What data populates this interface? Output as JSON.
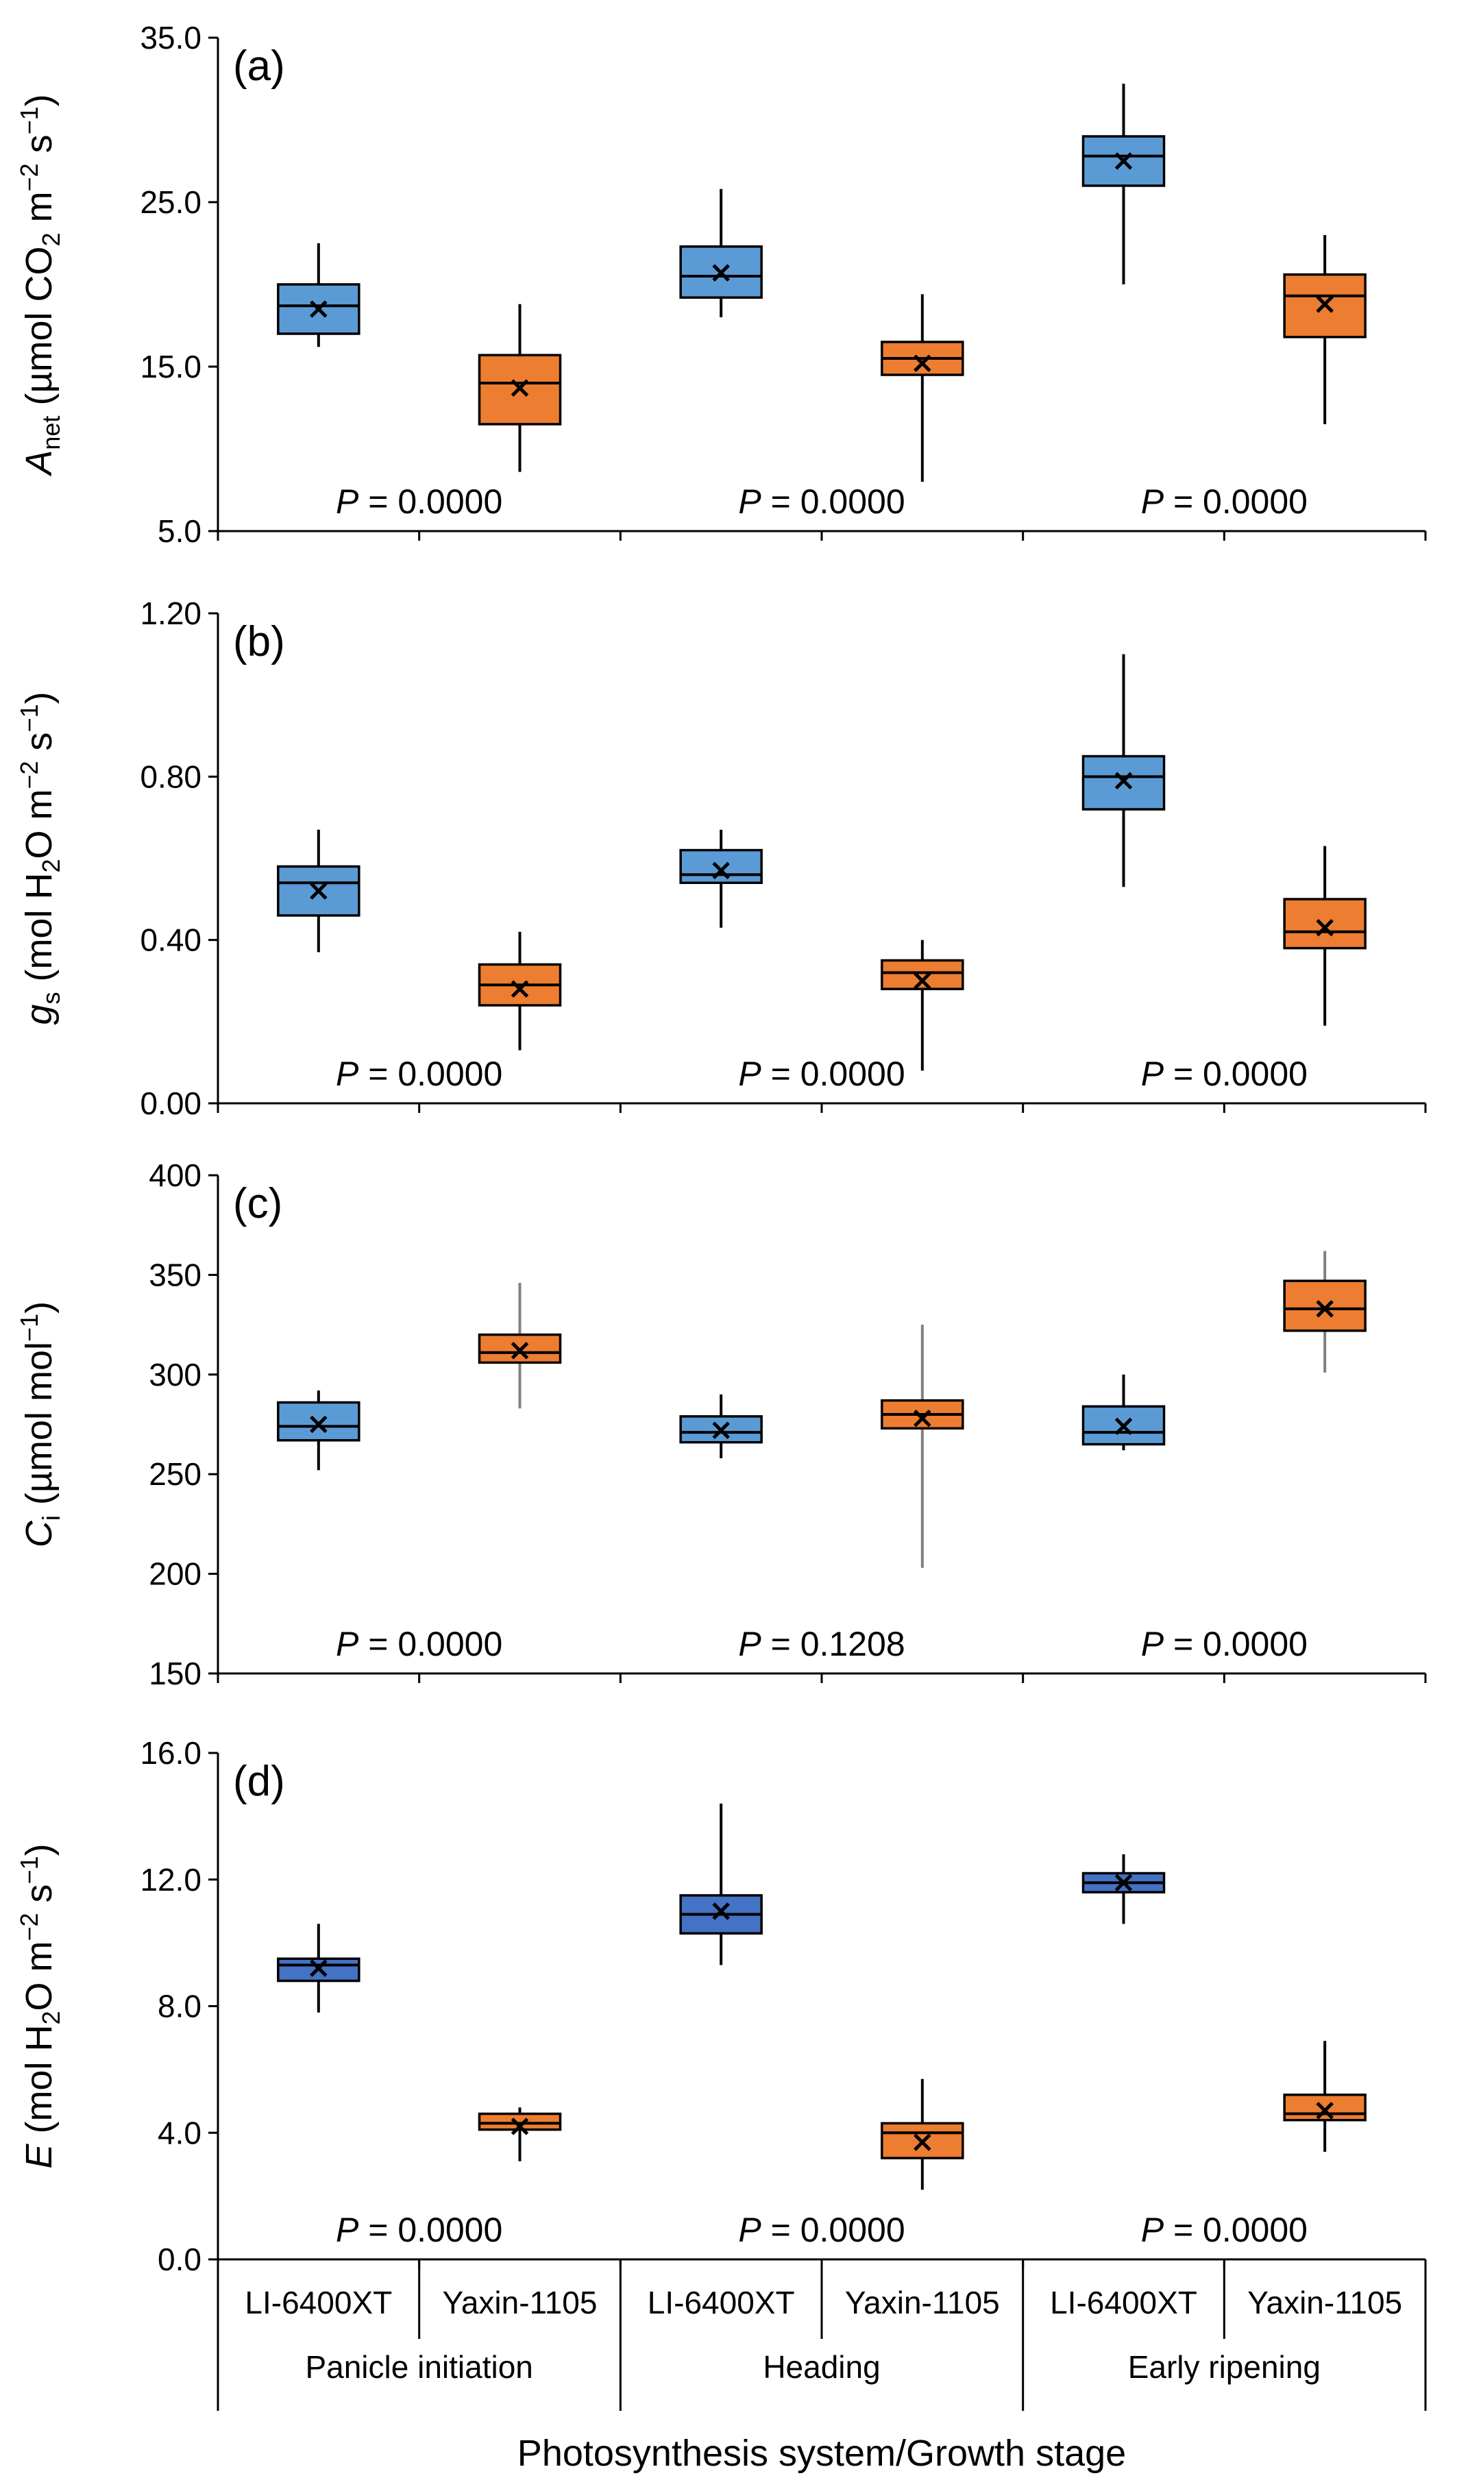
{
  "chart_data": [
    {
      "type": "box",
      "panel_label": "(a)",
      "ylabel_var": "A",
      "ylabel_sub": "net",
      "ylabel_unit_html": "(µmol CO|2| m|−2| s|−1|)",
      "ylim": [
        5.0,
        35.0
      ],
      "yticks": [
        "35.0",
        "25.0",
        "15.0",
        "5.0"
      ],
      "yticks_values": [
        35.0,
        25.0,
        15.0,
        5.0
      ],
      "boxes": [
        {
          "group": "Panicle initiation",
          "system": "LI-6400XT",
          "min": 16.2,
          "q1": 17.0,
          "median": 18.7,
          "q3": 20.0,
          "max": 22.5,
          "mean": 18.5
        },
        {
          "group": "Panicle initiation",
          "system": "Yaxin-1105",
          "min": 8.6,
          "q1": 11.5,
          "median": 14.0,
          "q3": 15.7,
          "max": 18.8,
          "mean": 13.7
        },
        {
          "group": "Heading",
          "system": "LI-6400XT",
          "min": 18.0,
          "q1": 19.2,
          "median": 20.5,
          "q3": 22.3,
          "max": 25.8,
          "mean": 20.7
        },
        {
          "group": "Heading",
          "system": "Yaxin-1105",
          "min": 8.0,
          "q1": 14.5,
          "median": 15.5,
          "q3": 16.5,
          "max": 19.4,
          "mean": 15.2
        },
        {
          "group": "Early ripening",
          "system": "LI-6400XT",
          "min": 20.0,
          "q1": 26.0,
          "median": 27.8,
          "q3": 29.0,
          "max": 32.2,
          "mean": 27.5
        },
        {
          "group": "Early ripening",
          "system": "Yaxin-1105",
          "min": 11.5,
          "q1": 16.8,
          "median": 19.3,
          "q3": 20.6,
          "max": 23.0,
          "mean": 18.8
        }
      ],
      "p_values": [
        "P = 0.0000",
        "P = 0.0000",
        "P = 0.0000"
      ]
    },
    {
      "type": "box",
      "panel_label": "(b)",
      "ylabel_var": "g",
      "ylabel_sub": "s",
      "ylabel_unit_html": "(mol H|2|O m|−2| s|−1|)",
      "ylim": [
        0.0,
        1.2
      ],
      "yticks": [
        "1.20",
        "0.80",
        "0.40",
        "0.00"
      ],
      "yticks_values": [
        1.2,
        0.8,
        0.4,
        0.0
      ],
      "boxes": [
        {
          "group": "Panicle initiation",
          "system": "LI-6400XT",
          "min": 0.37,
          "q1": 0.46,
          "median": 0.54,
          "q3": 0.58,
          "max": 0.67,
          "mean": 0.52
        },
        {
          "group": "Panicle initiation",
          "system": "Yaxin-1105",
          "min": 0.13,
          "q1": 0.24,
          "median": 0.29,
          "q3": 0.34,
          "max": 0.42,
          "mean": 0.28
        },
        {
          "group": "Heading",
          "system": "LI-6400XT",
          "min": 0.43,
          "q1": 0.54,
          "median": 0.56,
          "q3": 0.62,
          "max": 0.67,
          "mean": 0.57
        },
        {
          "group": "Heading",
          "system": "Yaxin-1105",
          "min": 0.08,
          "q1": 0.28,
          "median": 0.32,
          "q3": 0.35,
          "max": 0.4,
          "mean": 0.3
        },
        {
          "group": "Early ripening",
          "system": "LI-6400XT",
          "min": 0.53,
          "q1": 0.72,
          "median": 0.8,
          "q3": 0.85,
          "max": 1.1,
          "mean": 0.79
        },
        {
          "group": "Early ripening",
          "system": "Yaxin-1105",
          "min": 0.19,
          "q1": 0.38,
          "median": 0.42,
          "q3": 0.5,
          "max": 0.63,
          "mean": 0.43
        }
      ],
      "p_values": [
        "P = 0.0000",
        "P = 0.0000",
        "P = 0.0000"
      ]
    },
    {
      "type": "box",
      "panel_label": "(c)",
      "ylabel_var": "C",
      "ylabel_sub": "i",
      "ylabel_unit_html": "(µmol mol|−1|)",
      "ylim": [
        150,
        400
      ],
      "yticks": [
        "400",
        "350",
        "300",
        "250",
        "200",
        "150"
      ],
      "yticks_values": [
        400,
        350,
        300,
        250,
        200,
        150
      ],
      "boxes": [
        {
          "group": "Panicle initiation",
          "system": "LI-6400XT",
          "min": 252,
          "q1": 267,
          "median": 274,
          "q3": 286,
          "max": 292,
          "mean": 275
        },
        {
          "group": "Panicle initiation",
          "system": "Yaxin-1105",
          "min": 283,
          "q1": 306,
          "median": 311,
          "q3": 320,
          "max": 346,
          "mean": 312
        },
        {
          "group": "Heading",
          "system": "LI-6400XT",
          "min": 258,
          "q1": 266,
          "median": 271,
          "q3": 279,
          "max": 290,
          "mean": 272
        },
        {
          "group": "Heading",
          "system": "Yaxin-1105",
          "min": 203,
          "q1": 273,
          "median": 280,
          "q3": 287,
          "max": 325,
          "mean": 278
        },
        {
          "group": "Early ripening",
          "system": "LI-6400XT",
          "min": 262,
          "q1": 265,
          "median": 271,
          "q3": 284,
          "max": 300,
          "mean": 274
        },
        {
          "group": "Early ripening",
          "system": "Yaxin-1105",
          "min": 301,
          "q1": 322,
          "median": 333,
          "q3": 347,
          "max": 362,
          "mean": 333
        }
      ],
      "p_values": [
        "P = 0.0000",
        "P = 0.1208",
        "P = 0.0000"
      ]
    },
    {
      "type": "box",
      "panel_label": "(d)",
      "ylabel_var": "E",
      "ylabel_sub": "",
      "ylabel_unit_html": "(mol H|2|O m|−2| s|−1|)",
      "ylim": [
        0.0,
        16.0
      ],
      "yticks": [
        "16.0",
        "12.0",
        "8.0",
        "4.0",
        "0.0"
      ],
      "yticks_values": [
        16.0,
        12.0,
        8.0,
        4.0,
        0.0
      ],
      "boxes": [
        {
          "group": "Panicle initiation",
          "system": "LI-6400XT",
          "min": 7.8,
          "q1": 8.8,
          "median": 9.3,
          "q3": 9.5,
          "max": 10.6,
          "mean": 9.2
        },
        {
          "group": "Panicle initiation",
          "system": "Yaxin-1105",
          "min": 3.1,
          "q1": 4.1,
          "median": 4.3,
          "q3": 4.6,
          "max": 4.8,
          "mean": 4.2
        },
        {
          "group": "Heading",
          "system": "LI-6400XT",
          "min": 9.3,
          "q1": 10.3,
          "median": 10.9,
          "q3": 11.5,
          "max": 14.4,
          "mean": 11.0
        },
        {
          "group": "Heading",
          "system": "Yaxin-1105",
          "min": 2.2,
          "q1": 3.2,
          "median": 4.0,
          "q3": 4.3,
          "max": 5.7,
          "mean": 3.7
        },
        {
          "group": "Early ripening",
          "system": "LI-6400XT",
          "min": 10.6,
          "q1": 11.6,
          "median": 11.9,
          "q3": 12.2,
          "max": 12.8,
          "mean": 11.9
        },
        {
          "group": "Early ripening",
          "system": "Yaxin-1105",
          "min": 3.4,
          "q1": 4.4,
          "median": 4.6,
          "q3": 5.2,
          "max": 6.9,
          "mean": 4.7
        }
      ],
      "p_values": [
        "P = 0.0000",
        "P = 0.0000",
        "P = 0.0000"
      ]
    }
  ],
  "x_axis": {
    "systems": [
      "LI-6400XT",
      "Yaxin-1105",
      "LI-6400XT",
      "Yaxin-1105",
      "LI-6400XT",
      "Yaxin-1105"
    ],
    "stages": [
      "Panicle initiation",
      "Heading",
      "Early ripening"
    ],
    "xlabel": "Photosynthesis system/Growth stage"
  },
  "colors": {
    "LI-6400XT": "#5B9BD5",
    "LI-6400XT_d": "#4472C4",
    "Yaxin-1105": "#ED7D31",
    "axis": "#000000",
    "whisker_c": "#808080"
  }
}
